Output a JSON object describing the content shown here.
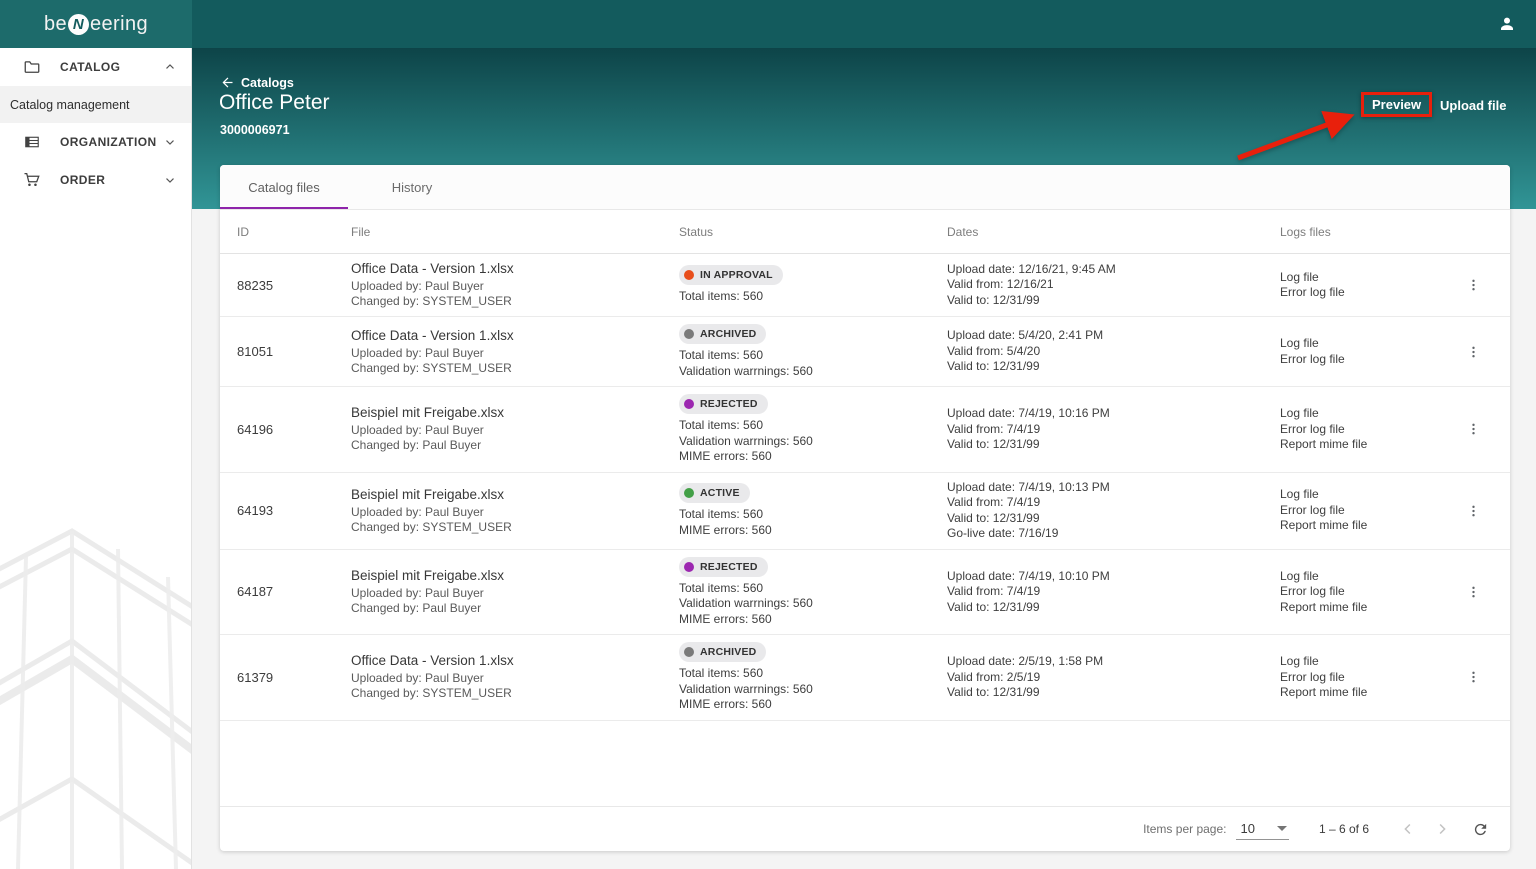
{
  "topbar": {
    "logo": {
      "pre": "be",
      "mid": "N",
      "post": "eering"
    }
  },
  "sidebar": {
    "catalog": {
      "label": "CATALOG"
    },
    "catalog_management": {
      "label": "Catalog management"
    },
    "organization": {
      "label": "ORGANIZATION"
    },
    "order": {
      "label": "ORDER"
    }
  },
  "header": {
    "breadcrumb_back": "Catalogs",
    "title": "Office Peter",
    "catalog_number": "3000006971",
    "preview_button": "Preview",
    "upload_button": "Upload file"
  },
  "tabs": {
    "catalog_files": "Catalog files",
    "history": "History"
  },
  "table": {
    "columns": {
      "id": "ID",
      "file": "File",
      "status": "Status",
      "dates": "Dates",
      "logs": "Logs files"
    },
    "rows": [
      {
        "id": "88235",
        "file_name": "Office Data - Version 1.xlsx",
        "uploaded_by": "Uploaded by: Paul Buyer",
        "changed_by": "Changed by: SYSTEM_USER",
        "status": "IN APPROVAL",
        "status_lines": [
          "Total items: 560"
        ],
        "dates": [
          "Upload date: 12/16/21, 9:45 AM",
          "Valid from: 12/16/21",
          "Valid to: 12/31/99"
        ],
        "logs": [
          "Log file",
          "Error log file"
        ]
      },
      {
        "id": "81051",
        "file_name": "Office Data - Version 1.xlsx",
        "uploaded_by": "Uploaded by: Paul Buyer",
        "changed_by": "Changed by: SYSTEM_USER",
        "status": "ARCHIVED",
        "status_lines": [
          "Total items: 560",
          "Validation warrnings: 560"
        ],
        "dates": [
          "Upload date: 5/4/20, 2:41 PM",
          "Valid from: 5/4/20",
          "Valid to: 12/31/99"
        ],
        "logs": [
          "Log file",
          "Error log file"
        ]
      },
      {
        "id": "64196",
        "file_name": "Beispiel mit Freigabe.xlsx",
        "uploaded_by": "Uploaded by: Paul Buyer",
        "changed_by": "Changed by: Paul Buyer",
        "status": "REJECTED",
        "status_lines": [
          "Total items: 560",
          "Validation warrnings: 560",
          "MIME errors: 560"
        ],
        "dates": [
          "Upload date: 7/4/19, 10:16 PM",
          "Valid from: 7/4/19",
          "Valid to: 12/31/99"
        ],
        "logs": [
          "Log file",
          "Error log file",
          "Report mime file"
        ]
      },
      {
        "id": "64193",
        "file_name": "Beispiel mit Freigabe.xlsx",
        "uploaded_by": "Uploaded by: Paul Buyer",
        "changed_by": "Changed by: SYSTEM_USER",
        "status": "ACTIVE",
        "status_lines": [
          "Total items: 560",
          "MIME errors: 560"
        ],
        "dates": [
          "Upload date: 7/4/19, 10:13 PM",
          "Valid from: 7/4/19",
          "Valid to: 12/31/99",
          "Go-live date: 7/16/19"
        ],
        "logs": [
          "Log file",
          "Error log file",
          "Report mime file"
        ]
      },
      {
        "id": "64187",
        "file_name": "Beispiel mit Freigabe.xlsx",
        "uploaded_by": "Uploaded by: Paul Buyer",
        "changed_by": "Changed by: Paul Buyer",
        "status": "REJECTED",
        "status_lines": [
          "Total items: 560",
          "Validation warrnings: 560",
          "MIME errors: 560"
        ],
        "dates": [
          "Upload date: 7/4/19, 10:10 PM",
          "Valid from: 7/4/19",
          "Valid to: 12/31/99"
        ],
        "logs": [
          "Log file",
          "Error log file",
          "Report mime file"
        ]
      },
      {
        "id": "61379",
        "file_name": "Office Data - Version 1.xlsx",
        "uploaded_by": "Uploaded by: Paul Buyer",
        "changed_by": "Changed by: SYSTEM_USER",
        "status": "ARCHIVED",
        "status_lines": [
          "Total items: 560",
          "Validation warrnings: 560",
          "MIME errors: 560"
        ],
        "dates": [
          "Upload date: 2/5/19, 1:58 PM",
          "Valid from: 2/5/19",
          "Valid to: 12/31/99"
        ],
        "logs": [
          "Log file",
          "Error log file",
          "Report mime file"
        ]
      }
    ]
  },
  "pagination": {
    "items_per_page_label": "Items per page:",
    "items_per_page_value": "10",
    "range": "1 – 6 of 6"
  },
  "status_colors": {
    "IN APPROVAL": "#e84e1b",
    "ARCHIVED": "#7a7a7a",
    "REJECTED": "#9c27b0",
    "ACTIVE": "#43a047"
  },
  "annotation": {
    "highlight_color": "#e8200c"
  }
}
